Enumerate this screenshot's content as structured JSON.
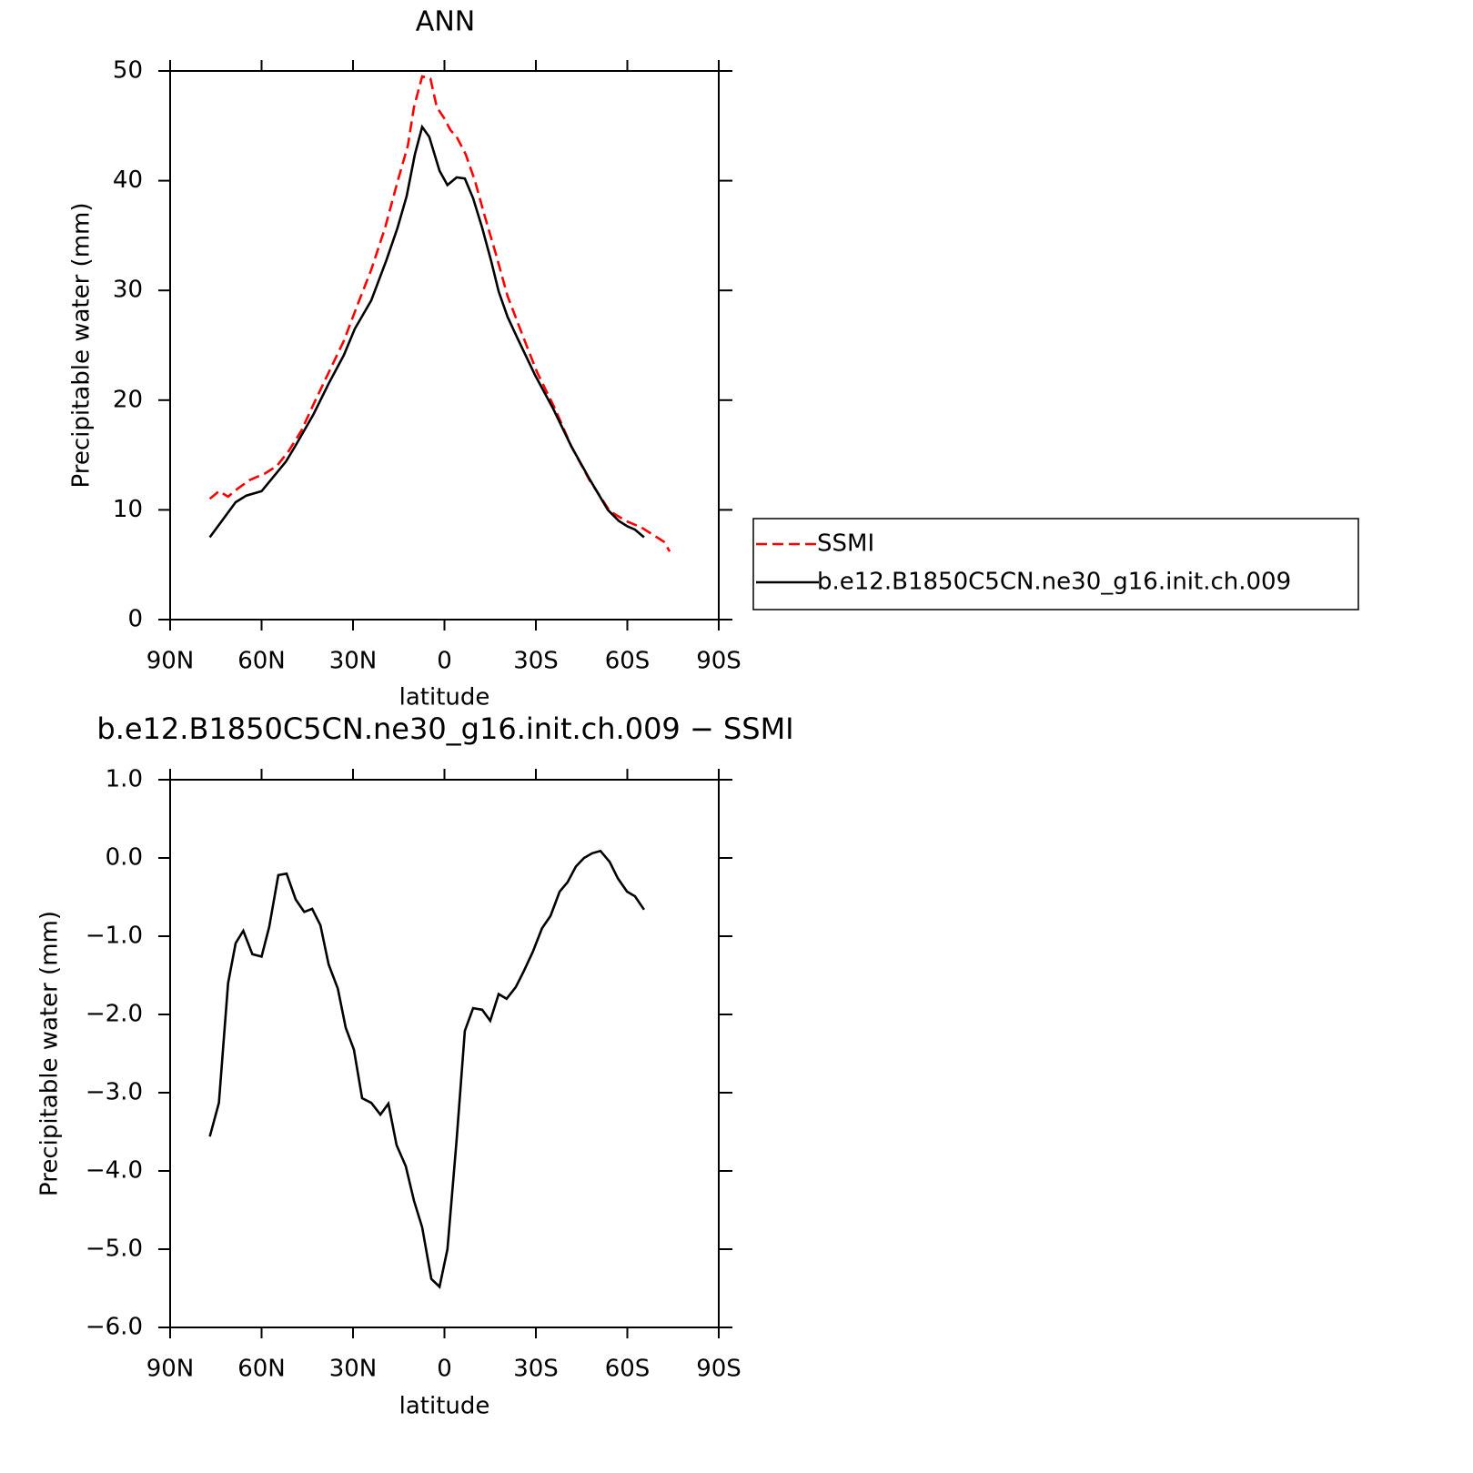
{
  "chart_data": [
    {
      "type": "line",
      "title": "ANN",
      "xlabel": "latitude",
      "ylabel": "Precipitable water (mm)",
      "xlim": [
        90,
        -90
      ],
      "ylim": [
        0,
        50
      ],
      "xticks": [
        {
          "value": 90,
          "label": "90N"
        },
        {
          "value": 60,
          "label": "60N"
        },
        {
          "value": 30,
          "label": "30N"
        },
        0,
        {
          "value": -30,
          "label": "30S"
        },
        {
          "value": -60,
          "label": "60S"
        },
        {
          "value": -90,
          "label": "90S"
        }
      ],
      "yticks": [
        0,
        10,
        20,
        30,
        40,
        50
      ],
      "legend": "right",
      "series": [
        {
          "name": "SSMI",
          "color": "#ff0000",
          "dash": true,
          "x": [
            77,
            74,
            71,
            68,
            64,
            59,
            55,
            51,
            47,
            43,
            38,
            33,
            28.5,
            24,
            19.5,
            15.4,
            12,
            10,
            7.3,
            4.6,
            2.5,
            0.1,
            -2,
            -4,
            -7,
            -10,
            -13,
            -16.9,
            -20.7,
            -25.8,
            -30.3,
            -36.3,
            -41.6,
            -47.6,
            -54.2,
            -59.5,
            -64.6,
            -69.7,
            -72,
            -73.9
          ],
          "values": [
            11.0,
            11.7,
            11.2,
            11.9,
            12.7,
            13.3,
            14.0,
            15.4,
            17.2,
            19.6,
            22.5,
            25.4,
            28.7,
            31.9,
            35.7,
            39.9,
            43.2,
            46.7,
            49.5,
            49.3,
            46.7,
            45.7,
            44.6,
            44.0,
            42.4,
            40.0,
            37.0,
            33.3,
            29.5,
            25.8,
            22.6,
            19.2,
            15.8,
            12.7,
            9.9,
            9.0,
            8.4,
            7.5,
            7.1,
            6.2
          ]
        },
        {
          "name": "b.e12.B1850C5CN.ne30_g16.init.ch.009",
          "color": "#000000",
          "dash": false,
          "x": [
            77,
            68.5,
            65,
            60,
            52,
            49,
            43,
            38,
            33,
            29.4,
            24,
            19,
            15.4,
            12.4,
            9.7,
            7.3,
            5,
            1.6,
            -1,
            -4,
            -6.7,
            -9.4,
            -12.4,
            -15.4,
            -17.8,
            -20.7,
            -23.7,
            -29.7,
            -35.7,
            -41.6,
            -47.6,
            -53.6,
            -57.2,
            -60,
            -62.5,
            -65.5
          ],
          "values": [
            7.5,
            10.7,
            11.3,
            11.7,
            14.4,
            15.8,
            18.7,
            21.5,
            24.1,
            26.5,
            29.1,
            32.8,
            35.7,
            38.6,
            42.4,
            44.9,
            44.0,
            40.9,
            39.6,
            40.3,
            40.2,
            38.4,
            35.7,
            32.6,
            29.9,
            27.6,
            25.8,
            22.3,
            19.2,
            15.8,
            12.8,
            10.0,
            9.0,
            8.5,
            8.2,
            7.5
          ]
        }
      ]
    },
    {
      "type": "line",
      "title": "b.e12.B1850C5CN.ne30_g16.init.ch.009 − SSMI",
      "xlabel": "latitude",
      "ylabel": "Precipitable water (mm)",
      "xlim": [
        90,
        -90
      ],
      "ylim": [
        -6,
        1
      ],
      "xticks": [
        {
          "value": 90,
          "label": "90N"
        },
        {
          "value": 60,
          "label": "60N"
        },
        {
          "value": 30,
          "label": "30N"
        },
        0,
        {
          "value": -30,
          "label": "30S"
        },
        {
          "value": -60,
          "label": "60S"
        },
        {
          "value": -90,
          "label": "90S"
        }
      ],
      "yticks": [
        {
          "value": 1,
          "label": "1.0"
        },
        {
          "value": 0,
          "label": "0.0"
        },
        {
          "value": -1,
          "label": "−1.0"
        },
        {
          "value": -2,
          "label": "−2.0"
        },
        {
          "value": -3,
          "label": "−3.0"
        },
        {
          "value": -4,
          "label": "−4.0"
        },
        {
          "value": -5,
          "label": "−5.0"
        },
        {
          "value": -6,
          "label": "−6.0"
        }
      ],
      "series": [
        {
          "color": "#000000",
          "dash": false,
          "x": [
            77,
            74,
            71,
            68.5,
            66,
            63,
            60,
            57.5,
            54.5,
            51.8,
            48.8,
            46,
            43.4,
            40.7,
            38,
            35,
            32.4,
            29.7,
            27,
            24,
            21,
            18.4,
            15.7,
            12.7,
            10,
            7.3,
            4.3,
            1.6,
            -1,
            -4,
            -6.7,
            -9.4,
            -12.4,
            -15,
            -17.8,
            -20.4,
            -23.4,
            -26,
            -29,
            -32,
            -34.8,
            -37.8,
            -40.4,
            -43.1,
            -45.8,
            -48.5,
            -51.2,
            -54.2,
            -56.9,
            -59.9,
            -62.5,
            -65.5
          ],
          "values": [
            -3.56,
            -3.13,
            -1.6,
            -1.09,
            -0.93,
            -1.23,
            -1.26,
            -0.88,
            -0.22,
            -0.2,
            -0.53,
            -0.69,
            -0.65,
            -0.86,
            -1.36,
            -1.67,
            -2.17,
            -2.45,
            -3.07,
            -3.13,
            -3.28,
            -3.14,
            -3.67,
            -3.94,
            -4.38,
            -4.72,
            -5.38,
            -5.48,
            -5.0,
            -3.6,
            -2.21,
            -1.92,
            -1.94,
            -2.08,
            -1.74,
            -1.8,
            -1.65,
            -1.45,
            -1.2,
            -0.9,
            -0.74,
            -0.43,
            -0.31,
            -0.11,
            0.0,
            0.06,
            0.09,
            -0.05,
            -0.26,
            -0.43,
            -0.49,
            -0.66
          ]
        }
      ]
    }
  ]
}
